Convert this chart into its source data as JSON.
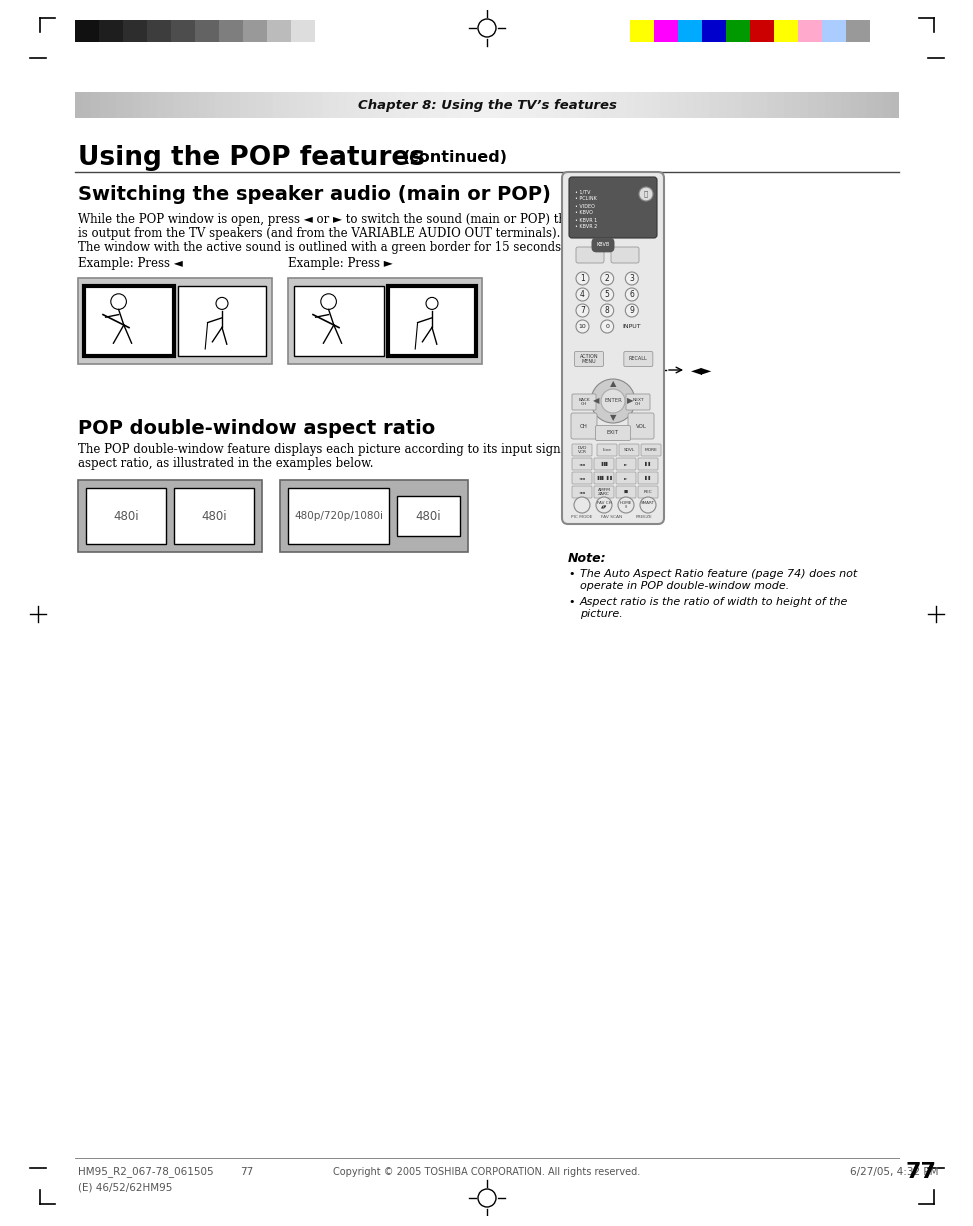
{
  "bg_color": "#ffffff",
  "chapter_text": "Chapter 8: Using the TV’s features",
  "main_title": "Using the POP features",
  "main_title_continued": "(continued)",
  "section1_title": "Switching the speaker audio (main or POP)",
  "section1_body1": "While the POP window is open, press ◄ or ► to switch the sound (main or POP) that",
  "section1_body1b": "is output from the TV speakers (and from the VARIABLE AUDIO OUT terminals).",
  "section1_body2": "The window with the active sound is outlined with a green border for 15 seconds.",
  "example_left_label": "Example: Press ◄",
  "example_right_label": "Example: Press ►",
  "section2_title": "POP double-window aspect ratio",
  "section2_body1": "The POP double-window feature displays each picture according to its input signal",
  "section2_body2": "aspect ratio, as illustrated in the examples below.",
  "aspect_box1_label1": "480i",
  "aspect_box1_label2": "480i",
  "aspect_box2_label1": "480p/720p/1080i",
  "aspect_box2_label2": "480i",
  "note_title": "Note:",
  "note_bullet1a": "The Auto Aspect Ratio feature (page 74) does not",
  "note_bullet1b": "operate in POP double-window mode.",
  "note_bullet2a": "Aspect ratio is the ratio of width to height of the",
  "note_bullet2b": "picture.",
  "footer_copyright": "Copyright © 2005 TOSHIBA CORPORATION. All rights reserved.",
  "footer_left": "HM95_R2_067-78_061505",
  "footer_mid": "77",
  "footer_right": "6/27/05, 4:32 PM",
  "footer_bottom": "(E) 46/52/62HM95",
  "page_number": "77",
  "colors_left": [
    "#111111",
    "#1e1e1e",
    "#2d2d2d",
    "#3d3d3d",
    "#4d4d4d",
    "#636363",
    "#7e7e7e",
    "#999999",
    "#bbbbbb",
    "#dddddd"
  ],
  "colors_right": [
    "#ffff00",
    "#ff00ff",
    "#00aaff",
    "#0000cc",
    "#009900",
    "#cc0000",
    "#ffff00",
    "#ffaacc",
    "#aaccff",
    "#999999"
  ]
}
